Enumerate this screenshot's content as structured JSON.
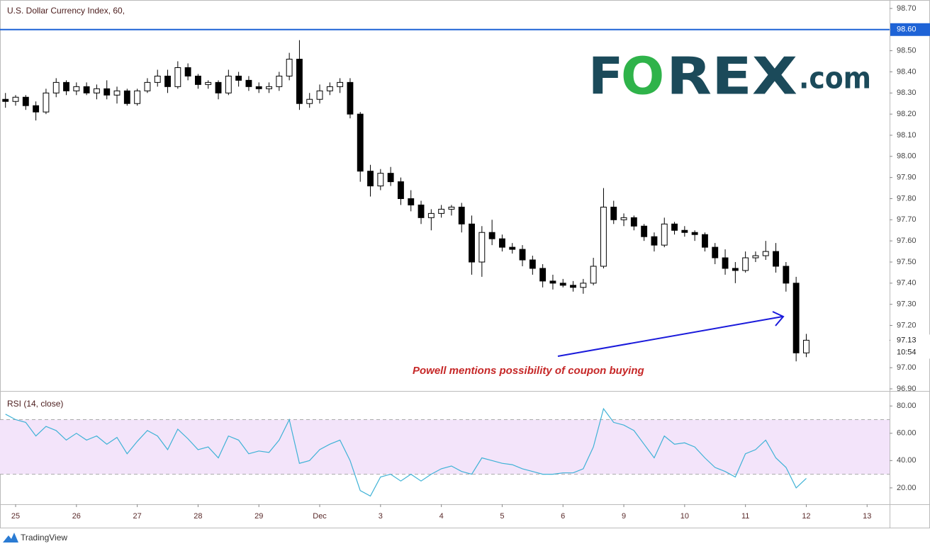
{
  "header": {
    "title": "U.S. Dollar Currency Index, 60,"
  },
  "logo": {
    "first": "F",
    "middle": "O",
    "rest": "REX",
    "suffix": ".com"
  },
  "footer": "TradingView",
  "chart_data": [
    {
      "type": "candlestick",
      "x": [
        -1,
        0,
        1,
        2,
        3,
        4,
        5,
        6,
        7,
        8,
        9,
        10,
        11,
        12,
        13,
        14,
        15,
        16,
        17,
        18,
        19,
        20,
        21,
        22,
        23,
        24,
        25,
        26,
        27,
        28,
        29,
        30,
        31,
        32,
        33,
        34,
        35,
        36,
        37,
        38,
        39,
        40,
        41,
        42,
        43,
        44,
        45,
        46,
        47,
        48,
        49,
        50,
        51,
        52,
        53,
        54,
        55,
        56,
        57,
        58,
        59,
        60,
        61,
        62,
        63,
        64,
        65,
        66,
        67,
        68,
        69,
        70,
        71,
        72,
        73,
        74,
        75,
        76,
        77,
        78
      ],
      "open": [
        98.27,
        98.26,
        98.28,
        98.24,
        98.21,
        98.3,
        98.35,
        98.31,
        98.33,
        98.3,
        98.32,
        98.29,
        98.31,
        98.25,
        98.31,
        98.35,
        98.38,
        98.33,
        98.42,
        98.38,
        98.34,
        98.35,
        98.3,
        98.38,
        98.36,
        98.33,
        98.32,
        98.33,
        98.38,
        98.46,
        98.25,
        98.27,
        98.31,
        98.33,
        98.35,
        98.2,
        97.93,
        97.86,
        97.92,
        97.88,
        97.8,
        97.77,
        97.71,
        97.73,
        97.75,
        97.76,
        97.68,
        97.5,
        97.64,
        97.61,
        97.57,
        97.56,
        97.51,
        97.47,
        97.41,
        97.4,
        97.39,
        97.38,
        97.4,
        97.48,
        97.76,
        97.7,
        97.71,
        97.67,
        97.62,
        97.58,
        97.68,
        97.65,
        97.64,
        97.63,
        97.57,
        97.52,
        97.47,
        97.46,
        97.52,
        97.53,
        97.55,
        97.48,
        97.4,
        97.07
      ],
      "high": [
        98.3,
        98.29,
        98.29,
        98.26,
        98.32,
        98.37,
        98.36,
        98.35,
        98.35,
        98.34,
        98.36,
        98.33,
        98.32,
        98.32,
        98.37,
        98.41,
        98.41,
        98.45,
        98.44,
        98.39,
        98.36,
        98.36,
        98.41,
        98.4,
        98.38,
        98.35,
        98.35,
        98.4,
        98.49,
        98.55,
        98.3,
        98.34,
        98.35,
        98.37,
        98.37,
        98.21,
        97.96,
        97.94,
        97.95,
        97.9,
        97.84,
        97.79,
        97.75,
        97.77,
        97.77,
        97.78,
        97.72,
        97.67,
        97.7,
        97.63,
        97.59,
        97.58,
        97.53,
        97.49,
        97.44,
        97.42,
        97.41,
        97.42,
        97.52,
        97.85,
        97.79,
        97.73,
        97.72,
        97.68,
        97.64,
        97.71,
        97.69,
        97.67,
        97.65,
        97.64,
        97.59,
        97.56,
        97.5,
        97.55,
        97.55,
        97.6,
        97.59,
        97.5,
        97.43,
        97.16
      ],
      "low": [
        98.23,
        98.24,
        98.22,
        98.17,
        98.2,
        98.28,
        98.29,
        98.29,
        98.29,
        98.27,
        98.27,
        98.25,
        98.24,
        98.24,
        98.3,
        98.33,
        98.3,
        98.32,
        98.36,
        98.32,
        98.32,
        98.27,
        98.29,
        98.33,
        98.31,
        98.3,
        98.3,
        98.31,
        98.36,
        98.22,
        98.23,
        98.25,
        98.29,
        98.3,
        98.18,
        97.88,
        97.81,
        97.84,
        97.86,
        97.77,
        97.74,
        97.68,
        97.65,
        97.71,
        97.72,
        97.64,
        97.44,
        97.43,
        97.58,
        97.55,
        97.54,
        97.48,
        97.44,
        97.38,
        97.37,
        97.38,
        97.36,
        97.35,
        97.39,
        97.47,
        97.68,
        97.67,
        97.65,
        97.6,
        97.55,
        97.57,
        97.63,
        97.62,
        97.6,
        97.55,
        97.49,
        97.44,
        97.4,
        97.45,
        97.5,
        97.51,
        97.45,
        97.36,
        97.03,
        97.05
      ],
      "close": [
        98.26,
        98.28,
        98.24,
        98.21,
        98.3,
        98.35,
        98.31,
        98.33,
        98.3,
        98.32,
        98.29,
        98.31,
        98.25,
        98.31,
        98.35,
        98.38,
        98.33,
        98.42,
        98.38,
        98.34,
        98.35,
        98.3,
        98.38,
        98.36,
        98.33,
        98.32,
        98.33,
        98.38,
        98.46,
        98.25,
        98.27,
        98.31,
        98.33,
        98.35,
        98.2,
        97.93,
        97.86,
        97.92,
        97.88,
        97.8,
        97.77,
        97.71,
        97.73,
        97.75,
        97.76,
        97.68,
        97.5,
        97.64,
        97.61,
        97.57,
        97.56,
        97.51,
        97.47,
        97.41,
        97.4,
        97.39,
        97.38,
        97.4,
        97.48,
        97.76,
        97.7,
        97.71,
        97.67,
        97.62,
        97.58,
        97.68,
        97.65,
        97.64,
        97.63,
        97.57,
        97.52,
        97.47,
        97.46,
        97.52,
        97.53,
        97.55,
        97.48,
        97.4,
        97.07,
        97.13
      ],
      "up_color": "#ffffff",
      "down_color": "#000000",
      "xlim": [
        -1.54,
        86.22
      ],
      "ylim": [
        96.89,
        98.74
      ],
      "yticks": [
        {
          "value": 98.7,
          "label": "98.70"
        },
        {
          "value": 98.5,
          "label": "98.50"
        },
        {
          "value": 98.4,
          "label": "98.40"
        },
        {
          "value": 98.3,
          "label": "98.30"
        },
        {
          "value": 98.2,
          "label": "98.20"
        },
        {
          "value": 98.1,
          "label": "98.10"
        },
        {
          "value": 98.0,
          "label": "98.00"
        },
        {
          "value": 97.9,
          "label": "97.90"
        },
        {
          "value": 97.8,
          "label": "97.80"
        },
        {
          "value": 97.7,
          "label": "97.70"
        },
        {
          "value": 97.6,
          "label": "97.60"
        },
        {
          "value": 97.5,
          "label": "97.50"
        },
        {
          "value": 97.4,
          "label": "97.40"
        },
        {
          "value": 97.3,
          "label": "97.30"
        },
        {
          "value": 97.2,
          "label": "97.20"
        },
        {
          "value": 97.0,
          "label": "97.00"
        },
        {
          "value": 96.9,
          "label": "96.90"
        }
      ],
      "xticks": [
        {
          "value": 0,
          "label": "25"
        },
        {
          "value": 6,
          "label": "26"
        },
        {
          "value": 12,
          "label": "27"
        },
        {
          "value": 18,
          "label": "28"
        },
        {
          "value": 24,
          "label": "29"
        },
        {
          "value": 30,
          "label": "Dec"
        },
        {
          "value": 36,
          "label": "3"
        },
        {
          "value": 42,
          "label": "4"
        },
        {
          "value": 48,
          "label": "5"
        },
        {
          "value": 54,
          "label": "6"
        },
        {
          "value": 60,
          "label": "9"
        },
        {
          "value": 66,
          "label": "10"
        },
        {
          "value": 72,
          "label": "11"
        },
        {
          "value": 78,
          "label": "12"
        },
        {
          "value": 84,
          "label": "13"
        }
      ],
      "hline": {
        "value": 98.6,
        "label": "98.60",
        "color": "#1e63d6"
      },
      "last_price": {
        "value": 97.13,
        "label": "97.13"
      },
      "countdown": "10:54",
      "annotation": "Powell mentions possibility of coupon buying"
    },
    {
      "type": "line",
      "title": "RSI (14, close)",
      "x": [
        -1,
        0,
        1,
        2,
        3,
        4,
        5,
        6,
        7,
        8,
        9,
        10,
        11,
        12,
        13,
        14,
        15,
        16,
        17,
        18,
        19,
        20,
        21,
        22,
        23,
        24,
        25,
        26,
        27,
        28,
        29,
        30,
        31,
        32,
        33,
        34,
        35,
        36,
        37,
        38,
        39,
        40,
        41,
        42,
        43,
        44,
        45,
        46,
        47,
        48,
        49,
        50,
        51,
        52,
        53,
        54,
        55,
        56,
        57,
        58,
        59,
        60,
        61,
        62,
        63,
        64,
        65,
        66,
        67,
        68,
        69,
        70,
        71,
        72,
        73,
        74,
        75,
        76,
        77,
        78
      ],
      "values": [
        74,
        70,
        68,
        58,
        65,
        62,
        55,
        60,
        55,
        58,
        52,
        57,
        45,
        54,
        62,
        58,
        48,
        63,
        56,
        48,
        50,
        42,
        58,
        55,
        45,
        47,
        46,
        55,
        70,
        38,
        40,
        48,
        52,
        55,
        40,
        18,
        14,
        28,
        30,
        25,
        30,
        25,
        30,
        34,
        36,
        32,
        30,
        42,
        40,
        38,
        37,
        34,
        32,
        30,
        30,
        31,
        31,
        34,
        50,
        78,
        68,
        66,
        62,
        52,
        42,
        58,
        52,
        53,
        50,
        42,
        35,
        32,
        28,
        45,
        48,
        55,
        42,
        35,
        20,
        27
      ],
      "color": "#3fb2d6",
      "band": [
        30,
        70
      ],
      "band_color": "#f3e4fa",
      "xlim": [
        -1.54,
        86.22
      ],
      "ylim": [
        8,
        90.5
      ],
      "yticks": [
        {
          "value": 80,
          "label": "80.00"
        },
        {
          "value": 60,
          "label": "60.00"
        },
        {
          "value": 40,
          "label": "40.00"
        },
        {
          "value": 20,
          "label": "20.00"
        }
      ]
    }
  ]
}
